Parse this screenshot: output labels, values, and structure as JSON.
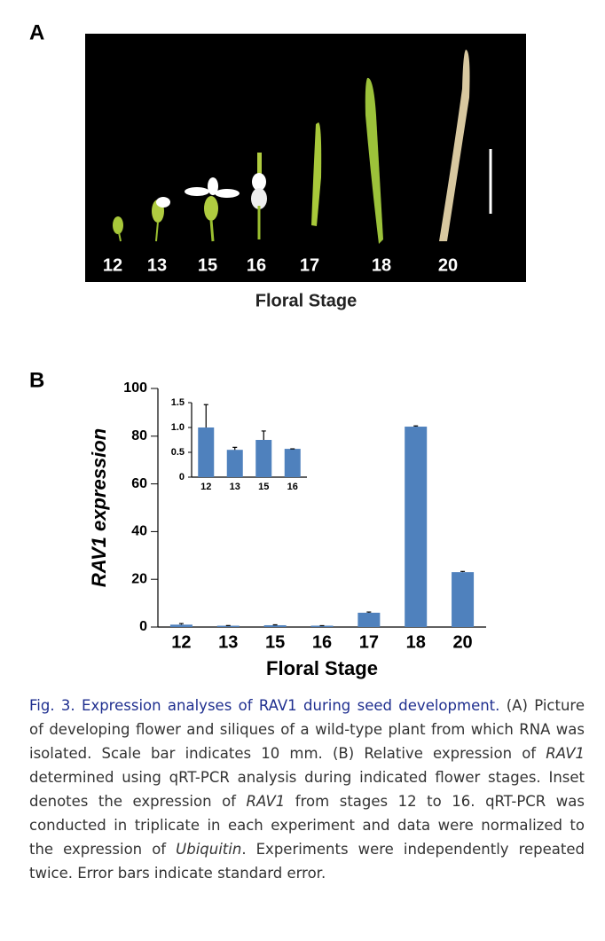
{
  "panel_a": {
    "label": "A",
    "stage_labels": [
      "12",
      "13",
      "15",
      "16",
      "17",
      "18",
      "20"
    ],
    "x_label": "Floral  Stage"
  },
  "panel_b": {
    "label": "B"
  },
  "chart_data": [
    {
      "type": "bar",
      "y_label": "RAV1 expression",
      "x_label": "Floral Stage",
      "categories": [
        "12",
        "13",
        "15",
        "16",
        "17",
        "18",
        "20"
      ],
      "series": [
        {
          "name": "RAV1",
          "color": "#4f81bd",
          "values": [
            1.0,
            0.55,
            0.75,
            0.57,
            6,
            84,
            23
          ],
          "errors": [
            0.46,
            0.05,
            0.18,
            0,
            0.3,
            0.3,
            0.3
          ]
        }
      ],
      "ylim": [
        0,
        100
      ],
      "yticks": [
        0,
        20,
        40,
        60,
        80,
        100
      ]
    },
    {
      "type": "bar",
      "categories": [
        "12",
        "13",
        "15",
        "16"
      ],
      "series": [
        {
          "name": "RAV1",
          "color": "#4f81bd",
          "values": [
            1.0,
            0.55,
            0.75,
            0.57
          ],
          "errors": [
            0.46,
            0.05,
            0.18,
            0
          ]
        }
      ],
      "ylim": [
        0,
        1.5
      ],
      "yticks": [
        0,
        0.5,
        {
          "value": 1,
          "label": "1.0"
        },
        1.5
      ]
    }
  ],
  "caption": {
    "title": "Fig. 3. Expression analyses of RAV1 during seed development.",
    "parts": [
      " (A) Picture of developing flower and siliques of a wild-type plant from which RNA was isolated. Scale bar indicates 10 mm. (B) Relative expression of ",
      "RAV1",
      " determined using qRT-PCR analysis during indicated flower stages. Inset denotes the expression of ",
      "RAV1",
      " from stages 12 to 16. qRT-PCR was conducted in triplicate in each experiment and data were normalized to the expression of ",
      "Ubiquitin",
      ". Experiments were independently repeated twice. Error bars indicate standard error."
    ]
  }
}
